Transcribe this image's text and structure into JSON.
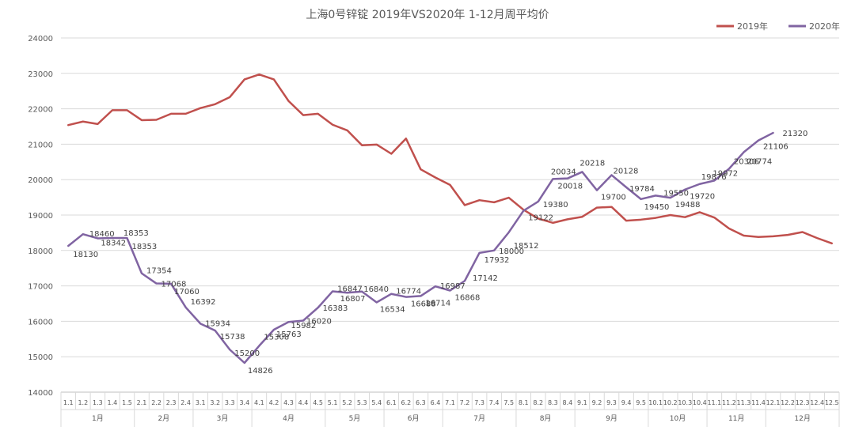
{
  "chart_data": {
    "type": "line",
    "title": "上海0号锌锭  2019年VS2020年  1-12月周平均价",
    "ylim": [
      14000,
      24000
    ],
    "y_ticks": [
      14000,
      15000,
      16000,
      17000,
      18000,
      19000,
      20000,
      21000,
      22000,
      23000,
      24000
    ],
    "grid": true,
    "legend_position": "top-right",
    "categories": [
      "1.1",
      "1.2",
      "1.3",
      "1.4",
      "1.5",
      "2.1",
      "2.2",
      "2.3",
      "2.4",
      "3.1",
      "3.2",
      "3.3",
      "3.4",
      "4.1",
      "4.2",
      "4.3",
      "4.4",
      "4.5",
      "5.1",
      "5.2",
      "5.3",
      "5.4",
      "6.1",
      "6.2",
      "6.3",
      "6.4",
      "7.1",
      "7.2",
      "7.3",
      "7.4",
      "7.5",
      "8.1",
      "8.2",
      "8.3",
      "8.4",
      "9.1",
      "9.2",
      "9.3",
      "9.4",
      "9.5",
      "10.1",
      "10.2",
      "10.3",
      "10.4",
      "11.1",
      "11.2",
      "11.3",
      "11.4",
      "12.1",
      "12.2",
      "12.3",
      "12.4",
      "12.5"
    ],
    "months": [
      {
        "label": "1月",
        "count": 5
      },
      {
        "label": "2月",
        "count": 4
      },
      {
        "label": "3月",
        "count": 4
      },
      {
        "label": "4月",
        "count": 5
      },
      {
        "label": "5月",
        "count": 4
      },
      {
        "label": "6月",
        "count": 4
      },
      {
        "label": "7月",
        "count": 5
      },
      {
        "label": "8月",
        "count": 4
      },
      {
        "label": "9月",
        "count": 5
      },
      {
        "label": "10月",
        "count": 4
      },
      {
        "label": "11月",
        "count": 4
      },
      {
        "label": "12月",
        "count": 5
      }
    ],
    "series": [
      {
        "name": "2019年",
        "color": "#c0504d",
        "values": [
          21540,
          21640,
          21570,
          21960,
          21960,
          21680,
          21690,
          21860,
          21860,
          22020,
          22130,
          22330,
          22830,
          22970,
          22830,
          22220,
          21820,
          21860,
          21550,
          21390,
          20970,
          20990,
          20730,
          21160,
          20290,
          20060,
          19850,
          19280,
          19420,
          19360,
          19490,
          19150,
          18900,
          18780,
          18880,
          18950,
          19210,
          19230,
          18840,
          18870,
          18920,
          19000,
          18940,
          19080,
          18930,
          18620,
          18420,
          18380,
          18400,
          18440,
          18520,
          18350,
          18200
        ]
      },
      {
        "name": "2020年",
        "color": "#8064a2",
        "values": [
          18130,
          18460,
          18342,
          18353,
          18353,
          17354,
          17068,
          17060,
          16392,
          15934,
          15738,
          15200,
          14826,
          15308,
          15763,
          15982,
          16020,
          16383,
          16847,
          16807,
          16840,
          16534,
          16774,
          16688,
          16714,
          16987,
          16868,
          17142,
          17932,
          18000,
          18512,
          19122,
          19380,
          20018,
          20034,
          20218,
          19700,
          20128,
          19784,
          19450,
          19550,
          19488,
          19720,
          19876,
          19972,
          20306,
          20774,
          21106,
          21320,
          null,
          null,
          null,
          null
        ]
      }
    ],
    "data_labels": [
      {
        "i": 0,
        "text": "18130",
        "dx": 6,
        "dy": 14
      },
      {
        "i": 1,
        "text": "18460",
        "dx": 8,
        "dy": 3
      },
      {
        "i": 2,
        "text": "18342",
        "dx": 4,
        "dy": 9
      },
      {
        "i": 3,
        "text": "18353",
        "dx": 14,
        "dy": -3
      },
      {
        "i": 4,
        "text": "18353",
        "dx": 6,
        "dy": 14
      },
      {
        "i": 5,
        "text": "17354",
        "dx": 6,
        "dy": 0
      },
      {
        "i": 6,
        "text": "17068",
        "dx": 6,
        "dy": 4
      },
      {
        "i": 7,
        "text": "17060",
        "dx": 4,
        "dy": 13
      },
      {
        "i": 8,
        "text": "16392",
        "dx": 6,
        "dy": -4
      },
      {
        "i": 9,
        "text": "15934",
        "dx": 6,
        "dy": 3
      },
      {
        "i": 10,
        "text": "15738",
        "dx": 6,
        "dy": 11
      },
      {
        "i": 11,
        "text": "15200",
        "dx": 6,
        "dy": 8
      },
      {
        "i": 12,
        "text": "14826",
        "dx": 4,
        "dy": 13
      },
      {
        "i": 13,
        "text": "15308",
        "dx": 6,
        "dy": -8
      },
      {
        "i": 14,
        "text": "15763",
        "dx": 3,
        "dy": 9
      },
      {
        "i": 15,
        "text": "15982",
        "dx": 3,
        "dy": 8
      },
      {
        "i": 16,
        "text": "16020",
        "dx": 4,
        "dy": 4
      },
      {
        "i": 17,
        "text": "16383",
        "dx": 6,
        "dy": 4
      },
      {
        "i": 18,
        "text": "16847",
        "dx": 6,
        "dy": 0
      },
      {
        "i": 19,
        "text": "16807",
        "dx": -9,
        "dy": 11
      },
      {
        "i": 20,
        "text": "16840",
        "dx": 2,
        "dy": 0
      },
      {
        "i": 21,
        "text": "16534",
        "dx": 4,
        "dy": 12
      },
      {
        "i": 22,
        "text": "16774",
        "dx": 6,
        "dy": 0
      },
      {
        "i": 23,
        "text": "16688",
        "dx": 6,
        "dy": 12
      },
      {
        "i": 24,
        "text": "16714",
        "dx": 6,
        "dy": 12
      },
      {
        "i": 25,
        "text": "16987",
        "dx": 6,
        "dy": 3
      },
      {
        "i": 26,
        "text": "16868",
        "dx": 6,
        "dy": 12
      },
      {
        "i": 27,
        "text": "17142",
        "dx": 10,
        "dy": 0
      },
      {
        "i": 28,
        "text": "17932",
        "dx": 6,
        "dy": 12
      },
      {
        "i": 29,
        "text": "18000",
        "dx": 6,
        "dy": 4
      },
      {
        "i": 30,
        "text": "18512",
        "dx": 6,
        "dy": 20
      },
      {
        "i": 31,
        "text": "19122",
        "dx": 6,
        "dy": 12
      },
      {
        "i": 32,
        "text": "19380",
        "dx": 6,
        "dy": 7
      },
      {
        "i": 33,
        "text": "20018",
        "dx": 6,
        "dy": 12
      },
      {
        "i": 34,
        "text": "20034",
        "dx": -21,
        "dy": -5
      },
      {
        "i": 35,
        "text": "20218",
        "dx": -3,
        "dy": -8
      },
      {
        "i": 36,
        "text": "19700",
        "dx": 5,
        "dy": 12
      },
      {
        "i": 37,
        "text": "20128",
        "dx": 2,
        "dy": -2
      },
      {
        "i": 38,
        "text": "19784",
        "dx": 4,
        "dy": 5
      },
      {
        "i": 39,
        "text": "19450",
        "dx": 4,
        "dy": 13
      },
      {
        "i": 40,
        "text": "19550",
        "dx": 10,
        "dy": 0
      },
      {
        "i": 41,
        "text": "19488",
        "dx": 6,
        "dy": 12
      },
      {
        "i": 42,
        "text": "19720",
        "dx": 6,
        "dy": 12
      },
      {
        "i": 43,
        "text": "19876",
        "dx": 2,
        "dy": -6
      },
      {
        "i": 44,
        "text": "19972",
        "dx": -2,
        "dy": -6
      },
      {
        "i": 45,
        "text": "20306",
        "dx": 6,
        "dy": -6
      },
      {
        "i": 46,
        "text": "20774",
        "dx": 4,
        "dy": 15
      },
      {
        "i": 47,
        "text": "21106",
        "dx": 6,
        "dy": 11
      },
      {
        "i": 48,
        "text": "21320",
        "dx": 12,
        "dy": 4
      }
    ]
  }
}
